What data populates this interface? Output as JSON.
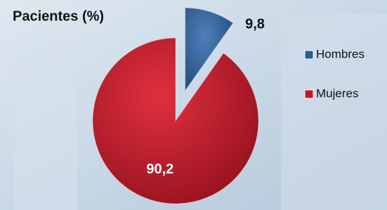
{
  "chart_data": {
    "type": "pie",
    "title": "Pacientes (%)",
    "categories": [
      "Hombres",
      "Mujeres"
    ],
    "values": [
      9.8,
      90.2
    ],
    "value_labels": [
      "9,8",
      "90,2"
    ],
    "colors": [
      "#2c5a93",
      "#c0182a"
    ],
    "legend": "right"
  }
}
